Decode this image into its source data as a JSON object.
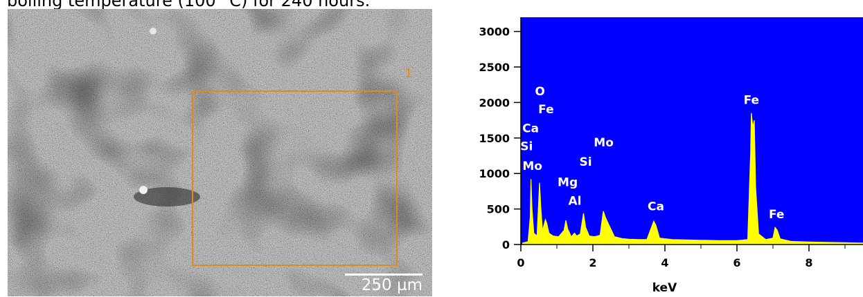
{
  "caption": "boiling temperature (100 °C) for 240 hours.",
  "sem_image": {
    "scale_bar_label": "250 µm",
    "roi_marker": "1"
  },
  "colors": {
    "spectrum_background": "#0000ff",
    "spectrum_line": "#ffff00",
    "peak_labels": "#ffffff",
    "roi_box": "#e08a1a"
  },
  "chart_data": {
    "type": "line",
    "title": "",
    "xlabel": "keV",
    "ylabel": "",
    "xlim": [
      0,
      9.5
    ],
    "ylim": [
      0,
      3200
    ],
    "x_ticks": [
      0,
      2,
      4,
      6,
      8
    ],
    "y_ticks": [
      0,
      500,
      1000,
      1500,
      2000,
      2500,
      3000
    ],
    "series": [
      {
        "points": [
          [
            0.05,
            20
          ],
          [
            0.2,
            40
          ],
          [
            0.26,
            380
          ],
          [
            0.28,
            920
          ],
          [
            0.31,
            500
          ],
          [
            0.36,
            160
          ],
          [
            0.45,
            120
          ],
          [
            0.52,
            870
          ],
          [
            0.55,
            560
          ],
          [
            0.6,
            190
          ],
          [
            0.68,
            350
          ],
          [
            0.72,
            300
          ],
          [
            0.78,
            160
          ],
          [
            0.9,
            120
          ],
          [
            1.05,
            110
          ],
          [
            1.2,
            200
          ],
          [
            1.25,
            340
          ],
          [
            1.3,
            220
          ],
          [
            1.4,
            110
          ],
          [
            1.49,
            160
          ],
          [
            1.55,
            120
          ],
          [
            1.65,
            150
          ],
          [
            1.74,
            440
          ],
          [
            1.8,
            240
          ],
          [
            1.9,
            120
          ],
          [
            2.05,
            110
          ],
          [
            2.2,
            130
          ],
          [
            2.29,
            470
          ],
          [
            2.35,
            380
          ],
          [
            2.45,
            270
          ],
          [
            2.6,
            110
          ],
          [
            2.8,
            85
          ],
          [
            3.0,
            75
          ],
          [
            3.3,
            70
          ],
          [
            3.5,
            70
          ],
          [
            3.69,
            330
          ],
          [
            3.75,
            270
          ],
          [
            3.85,
            90
          ],
          [
            4.2,
            70
          ],
          [
            4.6,
            65
          ],
          [
            5.0,
            60
          ],
          [
            5.5,
            55
          ],
          [
            6.0,
            55
          ],
          [
            6.3,
            70
          ],
          [
            6.38,
            1300
          ],
          [
            6.4,
            1850
          ],
          [
            6.44,
            1650
          ],
          [
            6.48,
            1750
          ],
          [
            6.52,
            800
          ],
          [
            6.6,
            150
          ],
          [
            6.8,
            70
          ],
          [
            7.0,
            90
          ],
          [
            7.06,
            240
          ],
          [
            7.12,
            200
          ],
          [
            7.2,
            80
          ],
          [
            7.5,
            45
          ],
          [
            8.0,
            35
          ],
          [
            8.5,
            30
          ],
          [
            9.0,
            25
          ],
          [
            9.5,
            20
          ]
        ]
      }
    ],
    "peak_labels": [
      {
        "text": "O",
        "x": 0.53,
        "y": 2100
      },
      {
        "text": "Fe",
        "x": 0.7,
        "y": 1850
      },
      {
        "text": "Ca",
        "x": 0.27,
        "y": 1580
      },
      {
        "text": "Si",
        "x": 0.16,
        "y": 1330
      },
      {
        "text": "Mo",
        "x": 0.32,
        "y": 1050
      },
      {
        "text": "Mg",
        "x": 1.3,
        "y": 820
      },
      {
        "text": "Al",
        "x": 1.5,
        "y": 560
      },
      {
        "text": "Si",
        "x": 1.8,
        "y": 1110
      },
      {
        "text": "Mo",
        "x": 2.3,
        "y": 1380
      },
      {
        "text": "Ca",
        "x": 3.75,
        "y": 480
      },
      {
        "text": "Fe",
        "x": 6.4,
        "y": 1980
      },
      {
        "text": "Fe",
        "x": 7.1,
        "y": 370
      }
    ]
  }
}
